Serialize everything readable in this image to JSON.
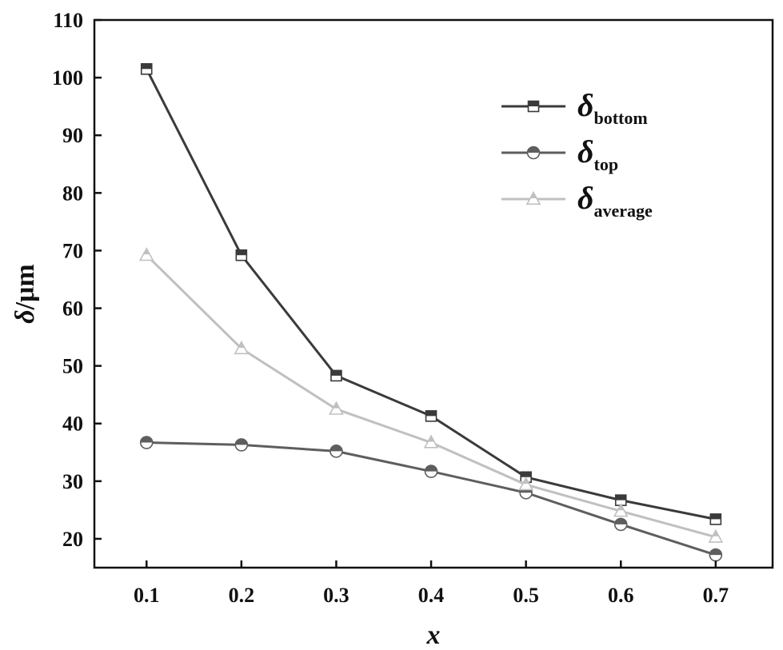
{
  "chart_data": {
    "type": "line",
    "x": [
      0.1,
      0.2,
      0.3,
      0.4,
      0.5,
      0.6,
      0.7
    ],
    "x_ticks": [
      "0.1",
      "0.2",
      "0.3",
      "0.4",
      "0.5",
      "0.6",
      "0.7"
    ],
    "y_ticks": [
      "20",
      "30",
      "40",
      "50",
      "60",
      "70",
      "80",
      "90",
      "100",
      "110"
    ],
    "xlim": [
      0.045,
      0.76
    ],
    "ylim": [
      15,
      110
    ],
    "xlabel": "x",
    "ylabel_symbol": "δ",
    "ylabel_unit": "/μm",
    "legend_position": "top-right",
    "grid": false,
    "series": [
      {
        "symbol": "δ",
        "subscript": "bottom",
        "marker": "square",
        "color": "#3a3a3a",
        "values": [
          101.5,
          69.2,
          48.3,
          41.3,
          30.7,
          26.7,
          23.4
        ]
      },
      {
        "symbol": "δ",
        "subscript": "top",
        "marker": "circle",
        "color": "#5e5e5e",
        "values": [
          36.7,
          36.3,
          35.2,
          31.7,
          28.0,
          22.5,
          17.2
        ]
      },
      {
        "symbol": "δ",
        "subscript": "average",
        "marker": "triangle",
        "color": "#c0c0c0",
        "values": [
          69.2,
          53.0,
          42.5,
          36.7,
          29.4,
          24.8,
          20.3
        ]
      }
    ]
  }
}
